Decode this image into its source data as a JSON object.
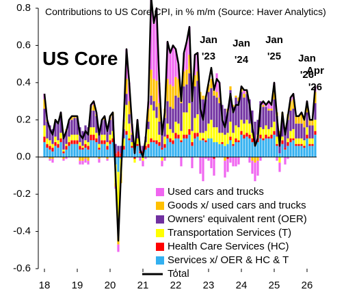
{
  "chart_data": {
    "type": "bar",
    "title": "Contributions to US Core CPI, in % m/m (Source: Haver Analytics)",
    "label": "US Core",
    "annotations": [
      {
        "text": "Jan '23",
        "index": 60
      },
      {
        "text": "Jan '24",
        "index": 72
      },
      {
        "text": "Jan '25",
        "index": 84
      },
      {
        "text": "Jan '26",
        "index": 96
      },
      {
        "text": "Apr '26",
        "index": 99
      }
    ],
    "categories": [
      "18",
      null,
      null,
      null,
      null,
      null,
      null,
      null,
      null,
      null,
      null,
      null,
      "19",
      null,
      null,
      null,
      null,
      null,
      null,
      null,
      null,
      null,
      null,
      null,
      "20",
      null,
      null,
      null,
      null,
      null,
      null,
      null,
      null,
      null,
      null,
      null,
      "21",
      null,
      null,
      null,
      null,
      null,
      null,
      null,
      null,
      null,
      null,
      null,
      "22",
      null,
      null,
      null,
      null,
      null,
      null,
      null,
      null,
      null,
      null,
      null,
      "23",
      null,
      null,
      null,
      null,
      null,
      null,
      null,
      null,
      null,
      null,
      null,
      "24",
      null,
      null,
      null,
      null,
      null,
      null,
      null,
      null,
      null,
      null,
      null,
      "25",
      null,
      null,
      null,
      null,
      null,
      null,
      null,
      null,
      null,
      null,
      null,
      "26",
      null,
      null,
      null
    ],
    "series": [
      {
        "name": "Used cars and trucks",
        "color": "#f066f0",
        "values": [
          0.03,
          0,
          -0.01,
          -0.02,
          0,
          0,
          0.01,
          -0.01,
          -0.01,
          0.01,
          0,
          0,
          0,
          -0.02,
          -0.02,
          -0.02,
          -0.02,
          0.01,
          0.02,
          0.01,
          -0.02,
          0,
          0.01,
          -0.01,
          0,
          0,
          -0.01,
          -0.04,
          0,
          0.01,
          0.16,
          0.1,
          0.05,
          0,
          0.03,
          -0.02,
          -0.03,
          -0.01,
          0.04,
          0.39,
          0.3,
          0.39,
          0.11,
          -0.03,
          -0.02,
          0.2,
          0.17,
          0.22,
          0.15,
          0.08,
          -0.05,
          0.1,
          0.15,
          0.15,
          -0.06,
          0.11,
          0.1,
          -0.09,
          -0.13,
          -0.01,
          -0.02,
          -0.06,
          -0.09,
          0.1,
          0.08,
          0,
          -0.09,
          -0.07,
          -0.03,
          -0.05,
          -0.05,
          -0.04,
          0.01,
          0.02,
          0.01,
          -0.03,
          -0.07,
          -0.1,
          -0.08,
          -0.02,
          0.02,
          0.01,
          0.04,
          0.02,
          0.03,
          -0.02,
          -0.05,
          0,
          -0.04,
          -0.01,
          0.02,
          0.03,
          0,
          0,
          0.01,
          0,
          0.01,
          0,
          0,
          0.03
        ]
      },
      {
        "name": "Goods x/ used cars and trucks",
        "color": "#ffc000",
        "values": [
          0.05,
          0.01,
          -0.01,
          -0.01,
          0.01,
          0,
          0.01,
          -0.01,
          0.01,
          0,
          0.02,
          0.01,
          0.01,
          -0.02,
          -0.02,
          -0.01,
          -0.02,
          0.02,
          0.03,
          0.01,
          -0.01,
          0,
          0.01,
          -0.01,
          0.02,
          0.02,
          -0.02,
          -0.14,
          -0.05,
          0.04,
          0.08,
          0.07,
          0.01,
          0,
          0.03,
          0,
          0,
          0,
          0.07,
          0.14,
          0.12,
          0.14,
          0.1,
          0.04,
          0.05,
          0.12,
          0.12,
          0.12,
          0.1,
          0.1,
          0.06,
          0.08,
          0.08,
          0.1,
          0.06,
          0.06,
          0.05,
          0.04,
          0.02,
          0.02,
          0.04,
          0.05,
          0.03,
          0.03,
          0.03,
          0,
          -0.02,
          0.02,
          0.02,
          0.01,
          0.01,
          0.02,
          0.02,
          0.02,
          0.01,
          0,
          -0.02,
          -0.03,
          -0.02,
          0,
          0.01,
          0,
          0.01,
          0.01,
          0.06,
          0.02,
          0.02,
          0.03,
          0.02,
          0.03,
          0.05,
          0.05,
          0.04,
          0.04,
          0.05,
          0.04,
          0.05,
          0.03,
          0.03,
          0.06
        ]
      },
      {
        "name": "Owners' equivalent rent (OER)",
        "color": "#7030a0",
        "values": [
          0.09,
          0.09,
          0.08,
          0.08,
          0.08,
          0.09,
          0.09,
          0.08,
          0.07,
          0.08,
          0.08,
          0.09,
          0.09,
          0.08,
          0.08,
          0.08,
          0.08,
          0.09,
          0.09,
          0.09,
          0.08,
          0.08,
          0.08,
          0.08,
          0.08,
          0.08,
          0.05,
          0.03,
          0.04,
          0.05,
          0.06,
          0.05,
          0.04,
          0.03,
          0.04,
          0.03,
          0.03,
          0.03,
          0.04,
          0.05,
          0.05,
          0.06,
          0.07,
          0.08,
          0.1,
          0.12,
          0.12,
          0.13,
          0.14,
          0.14,
          0.15,
          0.14,
          0.15,
          0.16,
          0.16,
          0.17,
          0.18,
          0.18,
          0.18,
          0.17,
          0.17,
          0.17,
          0.17,
          0.16,
          0.16,
          0.15,
          0.14,
          0.11,
          0.17,
          0.14,
          0.15,
          0.14,
          0.15,
          0.14,
          0.14,
          0.13,
          0.12,
          0.11,
          0.08,
          0.14,
          0.12,
          0.1,
          0.1,
          0.09,
          0.12,
          0.11,
          0.1,
          0.1,
          0.09,
          0.1,
          0.11,
          0.11,
          0.08,
          0.08,
          0.08,
          0.07,
          0.08,
          0.07,
          0.07,
          0.09
        ]
      },
      {
        "name": "Transportation Services (T)",
        "color": "#ffff00",
        "values": [
          0.06,
          0.03,
          0.03,
          0.02,
          0.03,
          0.02,
          0.03,
          0.01,
          0.01,
          0.03,
          0.03,
          0.03,
          0.03,
          0.02,
          0.01,
          0.02,
          0.02,
          0.04,
          0.04,
          0.03,
          0.02,
          0.03,
          0.03,
          0.02,
          0.03,
          0.04,
          -0.1,
          -0.25,
          -0.08,
          0.04,
          0.14,
          0.08,
          0.02,
          -0.02,
          0.03,
          0,
          -0.02,
          0.02,
          0.08,
          0.18,
          0.16,
          0.12,
          0.04,
          -0.02,
          0.04,
          0.06,
          0.05,
          0.04,
          0.06,
          0.06,
          0.05,
          0.12,
          0.12,
          0.14,
          0.06,
          0.08,
          0.1,
          0.04,
          0.03,
          0.05,
          0.08,
          0.1,
          0.08,
          0.08,
          0.06,
          0.05,
          0.06,
          0.06,
          0.08,
          0.06,
          0.07,
          0.07,
          0.06,
          0.06,
          0.07,
          0.06,
          0.03,
          0.01,
          0.02,
          0.04,
          0.05,
          0.05,
          0.04,
          0.04,
          0.05,
          0.04,
          -0.03,
          0.02,
          0,
          0.02,
          0.04,
          0.05,
          0.03,
          0.03,
          0.03,
          0.03,
          0.04,
          0.03,
          0.03,
          0.06
        ]
      },
      {
        "name": "Health Care Services (HC)",
        "color": "#ff0000",
        "values": [
          0.03,
          0.02,
          0.02,
          0.02,
          0.02,
          0.02,
          0.02,
          0.01,
          0.02,
          0.02,
          0.02,
          0.02,
          0.02,
          0.02,
          0.01,
          0.02,
          0.02,
          0.03,
          0.03,
          0.02,
          0.01,
          0.02,
          0.02,
          0.02,
          0.02,
          0.02,
          0.02,
          0.03,
          0.02,
          0.02,
          0.02,
          0.01,
          0.01,
          -0.01,
          0.01,
          0.01,
          0.01,
          0.02,
          0.02,
          0.02,
          0.01,
          0.02,
          0.02,
          0.01,
          0.02,
          0.02,
          0.02,
          0.02,
          0.03,
          0.02,
          0.01,
          0.02,
          0.02,
          0.03,
          0.02,
          0.03,
          0.02,
          0,
          0.01,
          0.01,
          0,
          0,
          -0.01,
          0,
          0,
          0.01,
          0,
          -0.01,
          0.02,
          0.01,
          0.02,
          0.01,
          0.02,
          0.02,
          0.02,
          0.02,
          0.02,
          0.01,
          0.02,
          0.02,
          0.01,
          0.02,
          0.01,
          0.02,
          0.02,
          0.01,
          0,
          0.02,
          0.01,
          0.02,
          0.02,
          0.01,
          0.01,
          0.01,
          0.01,
          0.01,
          0.02,
          0.01,
          0.01,
          0.02
        ]
      },
      {
        "name": "Services x/ OER & HC & T",
        "color": "#33b0f0",
        "values": [
          0.08,
          0.05,
          0.04,
          0.03,
          0.06,
          0.05,
          0.08,
          0.02,
          0.04,
          0.06,
          0.07,
          0.07,
          0.07,
          0.04,
          0.04,
          0.05,
          0.04,
          0.09,
          0.09,
          0.08,
          0.04,
          0.07,
          0.07,
          0.04,
          0.07,
          0.08,
          -0.04,
          -0.08,
          -0.01,
          0.04,
          0.12,
          0.09,
          0.05,
          0.02,
          0.06,
          0.02,
          0.02,
          0.04,
          0.05,
          0.08,
          0.08,
          0.07,
          0.06,
          0.04,
          0.05,
          0.1,
          0.08,
          0.07,
          0.1,
          0.1,
          0.08,
          0.1,
          0.1,
          0.12,
          0.06,
          0.1,
          0.11,
          0.09,
          0.09,
          0.08,
          0.1,
          0.1,
          0.08,
          0.08,
          0.07,
          0.07,
          0.06,
          0.07,
          0.09,
          0.06,
          0.08,
          0.08,
          0.12,
          0.1,
          0.11,
          0.1,
          0.08,
          0.06,
          0.08,
          0.1,
          0.09,
          0.1,
          0.1,
          0.1,
          0.12,
          0.06,
          0.02,
          0.07,
          0.04,
          0.06,
          0.08,
          0.09,
          0.06,
          0.06,
          0.06,
          0.05,
          0.1,
          0.06,
          0.06,
          0.12
        ]
      },
      {
        "name": "Total",
        "color": "#000000",
        "type": "line",
        "values": [
          0.34,
          0.2,
          0.15,
          0.12,
          0.2,
          0.18,
          0.24,
          0.1,
          0.14,
          0.2,
          0.22,
          0.22,
          0.22,
          0.12,
          0.1,
          0.14,
          0.12,
          0.28,
          0.3,
          0.24,
          0.12,
          0.2,
          0.22,
          0.14,
          0.22,
          0.24,
          -0.1,
          -0.45,
          -0.08,
          0.2,
          0.58,
          0.4,
          0.18,
          0.02,
          0.2,
          0.04,
          0,
          0.1,
          0.3,
          0.86,
          0.72,
          0.8,
          0.4,
          0.12,
          0.24,
          0.62,
          0.56,
          0.6,
          0.58,
          0.5,
          0.3,
          0.56,
          0.62,
          0.7,
          0.3,
          0.55,
          0.56,
          0.26,
          0.2,
          0.32,
          0.4,
          0.48,
          0.36,
          0.42,
          0.4,
          0.2,
          0.16,
          0.24,
          0.34,
          0.24,
          0.28,
          0.28,
          0.38,
          0.36,
          0.36,
          0.28,
          0.16,
          0.06,
          0.1,
          0.28,
          0.3,
          0.28,
          0.3,
          0.28,
          0.4,
          0.22,
          0.06,
          0.24,
          0.12,
          0.22,
          0.32,
          0.34,
          0.22,
          0.22,
          0.24,
          0.2,
          0.3,
          0.2,
          0.2,
          0.38
        ]
      }
    ],
    "ylim": [
      -0.6,
      0.8
    ],
    "yticks": [
      -0.6,
      -0.4,
      -0.2,
      {
        "value": 0,
        "label": "0.0"
      },
      0.2,
      0.4,
      0.6,
      0.8
    ],
    "stacked": true
  }
}
